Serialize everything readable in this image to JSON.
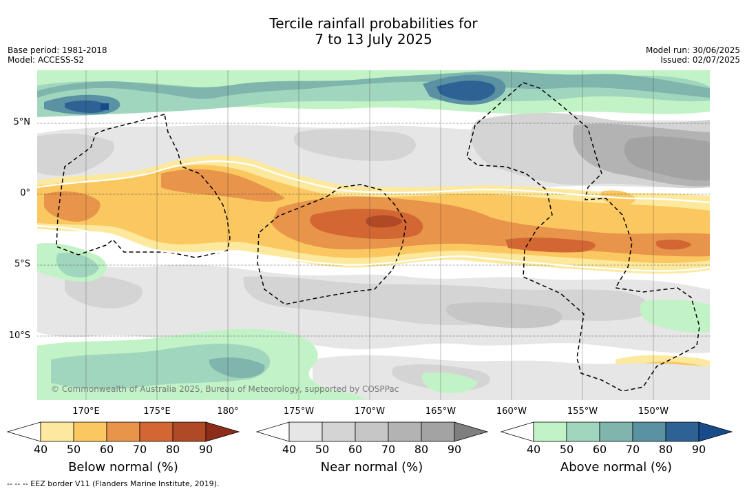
{
  "header": {
    "title_line1": "Tercile rainfall probabilities for",
    "title_line2": "7 to 13 July 2025",
    "base_period": "Base period: 1981-2018",
    "model": "Model: ACCESS-S2",
    "model_run": "Model run: 30/06/2025",
    "issued": "Issued: 02/07/2025"
  },
  "map": {
    "copyright": "© Commonwealth of Australia 2025, Bureau of Meteorology, supported by COSPPac",
    "lon_labels": [
      "170°E",
      "175°E",
      "180°",
      "175°W",
      "170°W",
      "165°W",
      "160°W",
      "155°W",
      "150°W"
    ],
    "lat_labels": [
      "5°N",
      "0°",
      "5°S",
      "10°S"
    ],
    "colors": {
      "below": [
        "#fde99d",
        "#fbc760",
        "#e8944a",
        "#d36734",
        "#b04a26",
        "#8e2c1a"
      ],
      "near": [
        "#e6e6e6",
        "#d4d4d4",
        "#c6c6c6",
        "#b3b3b3",
        "#a3a3a3",
        "#7f7f7f"
      ],
      "above": [
        "#c2f3c6",
        "#a0d6bd",
        "#7fb5ad",
        "#5a92a4",
        "#2e6295",
        "#174b8a"
      ]
    }
  },
  "colorbars": [
    {
      "title": "Below normal (%)",
      "ticks": [
        "40",
        "50",
        "60",
        "70",
        "80",
        "90"
      ]
    },
    {
      "title": "Near normal (%)",
      "ticks": [
        "40",
        "50",
        "60",
        "70",
        "80",
        "90"
      ]
    },
    {
      "title": "Above normal (%)",
      "ticks": [
        "40",
        "50",
        "60",
        "70",
        "80",
        "90"
      ]
    }
  ],
  "footnote": "--  --  -- EEZ border V11 (Flanders Marine Institute, 2019)."
}
